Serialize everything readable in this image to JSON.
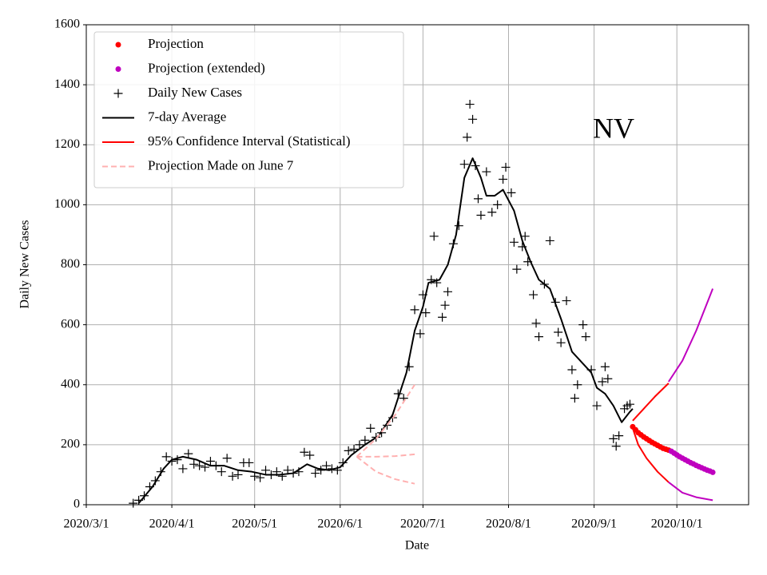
{
  "chart_data": {
    "type": "line",
    "xlabel": "Date",
    "ylabel": "Daily New Cases",
    "annotation": "NV",
    "xlim": [
      "2020-03-01",
      "2020-10-27"
    ],
    "ylim": [
      0,
      1600
    ],
    "xticks": [
      {
        "value": "2020-03-01",
        "label": "2020/3/1"
      },
      {
        "value": "2020-04-01",
        "label": "2020/4/1"
      },
      {
        "value": "2020-05-01",
        "label": "2020/5/1"
      },
      {
        "value": "2020-06-01",
        "label": "2020/6/1"
      },
      {
        "value": "2020-07-01",
        "label": "2020/7/1"
      },
      {
        "value": "2020-08-01",
        "label": "2020/8/1"
      },
      {
        "value": "2020-09-01",
        "label": "2020/9/1"
      },
      {
        "value": "2020-10-01",
        "label": "2020/10/1"
      }
    ],
    "yticks": [
      0,
      200,
      400,
      600,
      800,
      1000,
      1200,
      1400,
      1600
    ],
    "grid": true,
    "legend": "upper left",
    "series": [
      {
        "name": "Projection",
        "color": "#ff0000",
        "style": "dot",
        "x": [
          "2020-09-15",
          "2020-09-16",
          "2020-09-17",
          "2020-09-18",
          "2020-09-19",
          "2020-09-20",
          "2020-09-21",
          "2020-09-22",
          "2020-09-23",
          "2020-09-24",
          "2020-09-25",
          "2020-09-26",
          "2020-09-27",
          "2020-09-28"
        ],
        "values": [
          260,
          250,
          240,
          233,
          226,
          220,
          214,
          208,
          203,
          198,
          193,
          188,
          185,
          182
        ]
      },
      {
        "name": "Projection (extended)",
        "color": "#bf00bf",
        "style": "dot",
        "x": [
          "2020-09-29",
          "2020-09-30",
          "2020-10-01",
          "2020-10-02",
          "2020-10-03",
          "2020-10-04",
          "2020-10-05",
          "2020-10-06",
          "2020-10-07",
          "2020-10-08",
          "2020-10-09",
          "2020-10-10",
          "2020-10-11",
          "2020-10-12",
          "2020-10-13",
          "2020-10-14"
        ],
        "values": [
          178,
          172,
          166,
          160,
          155,
          150,
          145,
          140,
          136,
          131,
          127,
          123,
          119,
          115,
          112,
          108
        ]
      },
      {
        "name": "Daily New Cases",
        "color": "#000000",
        "style": "plus",
        "x": [
          "2020-03-18",
          "2020-03-20",
          "2020-03-22",
          "2020-03-24",
          "2020-03-26",
          "2020-03-28",
          "2020-03-30",
          "2020-04-01",
          "2020-04-03",
          "2020-04-05",
          "2020-04-07",
          "2020-04-09",
          "2020-04-11",
          "2020-04-13",
          "2020-04-15",
          "2020-04-17",
          "2020-04-19",
          "2020-04-21",
          "2020-04-23",
          "2020-04-25",
          "2020-04-27",
          "2020-04-29",
          "2020-05-01",
          "2020-05-03",
          "2020-05-05",
          "2020-05-07",
          "2020-05-09",
          "2020-05-11",
          "2020-05-13",
          "2020-05-15",
          "2020-05-17",
          "2020-05-19",
          "2020-05-21",
          "2020-05-23",
          "2020-05-25",
          "2020-05-27",
          "2020-05-29",
          "2020-05-31",
          "2020-06-02",
          "2020-06-04",
          "2020-06-06",
          "2020-06-08",
          "2020-06-10",
          "2020-06-12",
          "2020-06-14",
          "2020-06-16",
          "2020-06-18",
          "2020-06-20",
          "2020-06-22",
          "2020-06-24",
          "2020-06-26",
          "2020-06-28",
          "2020-06-30",
          "2020-07-01",
          "2020-07-02",
          "2020-07-04",
          "2020-07-05",
          "2020-07-06",
          "2020-07-08",
          "2020-07-09",
          "2020-07-10",
          "2020-07-12",
          "2020-07-14",
          "2020-07-16",
          "2020-07-17",
          "2020-07-18",
          "2020-07-19",
          "2020-07-20",
          "2020-07-21",
          "2020-07-22",
          "2020-07-24",
          "2020-07-26",
          "2020-07-28",
          "2020-07-30",
          "2020-07-31",
          "2020-08-02",
          "2020-08-03",
          "2020-08-04",
          "2020-08-06",
          "2020-08-07",
          "2020-08-08",
          "2020-08-10",
          "2020-08-11",
          "2020-08-12",
          "2020-08-14",
          "2020-08-16",
          "2020-08-18",
          "2020-08-19",
          "2020-08-20",
          "2020-08-22",
          "2020-08-24",
          "2020-08-25",
          "2020-08-26",
          "2020-08-28",
          "2020-08-29",
          "2020-08-31",
          "2020-09-02",
          "2020-09-04",
          "2020-09-05",
          "2020-09-06",
          "2020-09-08",
          "2020-09-09",
          "2020-09-10",
          "2020-09-12",
          "2020-09-13",
          "2020-09-14"
        ],
        "values": [
          5,
          15,
          30,
          60,
          80,
          110,
          160,
          145,
          150,
          120,
          170,
          135,
          130,
          125,
          145,
          130,
          110,
          155,
          95,
          100,
          140,
          140,
          95,
          90,
          115,
          100,
          110,
          95,
          115,
          105,
          110,
          175,
          165,
          105,
          115,
          130,
          120,
          115,
          140,
          180,
          185,
          200,
          215,
          255,
          225,
          240,
          265,
          290,
          370,
          355,
          460,
          650,
          570,
          700,
          640,
          750,
          895,
          740,
          625,
          665,
          710,
          870,
          930,
          1135,
          1225,
          1335,
          1285,
          1130,
          1020,
          965,
          1110,
          975,
          1000,
          1085,
          1125,
          1040,
          875,
          785,
          860,
          895,
          810,
          700,
          605,
          560,
          735,
          880,
          675,
          575,
          540,
          680,
          450,
          355,
          400,
          600,
          560,
          450,
          330,
          410,
          460,
          420,
          220,
          195,
          230,
          320,
          330,
          335
        ]
      },
      {
        "name": "7-day Average",
        "color": "#000000",
        "style": "line",
        "x": [
          "2020-03-20",
          "2020-03-25",
          "2020-03-29",
          "2020-04-01",
          "2020-04-05",
          "2020-04-10",
          "2020-04-15",
          "2020-04-20",
          "2020-04-25",
          "2020-04-30",
          "2020-05-05",
          "2020-05-10",
          "2020-05-15",
          "2020-05-20",
          "2020-05-24",
          "2020-05-28",
          "2020-06-01",
          "2020-06-05",
          "2020-06-10",
          "2020-06-15",
          "2020-06-20",
          "2020-06-25",
          "2020-06-28",
          "2020-07-01",
          "2020-07-03",
          "2020-07-07",
          "2020-07-10",
          "2020-07-13",
          "2020-07-16",
          "2020-07-19",
          "2020-07-22",
          "2020-07-24",
          "2020-07-27",
          "2020-07-30",
          "2020-08-03",
          "2020-08-06",
          "2020-08-09",
          "2020-08-12",
          "2020-08-16",
          "2020-08-20",
          "2020-08-24",
          "2020-08-28",
          "2020-08-31",
          "2020-09-02",
          "2020-09-05",
          "2020-09-08",
          "2020-09-11",
          "2020-09-14",
          "2020-09-15"
        ],
        "values": [
          5,
          60,
          120,
          150,
          160,
          150,
          130,
          130,
          115,
          110,
          100,
          100,
          105,
          135,
          120,
          115,
          125,
          165,
          200,
          230,
          300,
          440,
          580,
          660,
          740,
          750,
          800,
          900,
          1090,
          1155,
          1090,
          1030,
          1030,
          1050,
          980,
          880,
          810,
          750,
          720,
          620,
          510,
          470,
          440,
          390,
          370,
          330,
          275,
          310,
          320
        ]
      },
      {
        "name": "95% Confidence Interval (Statistical)",
        "color": "#ff0000",
        "style": "line",
        "x": [
          "2020-09-15",
          "2020-09-19",
          "2020-09-23",
          "2020-09-28"
        ],
        "values": [
          280,
          320,
          360,
          405
        ]
      },
      {
        "color": "#ff0000",
        "style": "line",
        "x": [
          "2020-09-15",
          "2020-09-17",
          "2020-09-20",
          "2020-09-24",
          "2020-09-28"
        ],
        "values": [
          255,
          200,
          155,
          110,
          75
        ]
      },
      {
        "color": "#bf00bf",
        "style": "line",
        "x": [
          "2020-09-28",
          "2020-10-03",
          "2020-10-08",
          "2020-10-14"
        ],
        "values": [
          410,
          480,
          580,
          720
        ]
      },
      {
        "color": "#bf00bf",
        "style": "line",
        "x": [
          "2020-09-28",
          "2020-10-03",
          "2020-10-08",
          "2020-10-14"
        ],
        "values": [
          75,
          40,
          25,
          15
        ]
      },
      {
        "name": "Projection Made on June 7",
        "color": "#ffb0b0",
        "style": "dashed",
        "x": [
          "2020-06-07",
          "2020-06-14",
          "2020-06-21",
          "2020-06-28"
        ],
        "values": [
          160,
          220,
          300,
          400
        ]
      },
      {
        "color": "#ffb0b0",
        "style": "dashed",
        "x": [
          "2020-06-07",
          "2020-06-14",
          "2020-06-21",
          "2020-06-28"
        ],
        "values": [
          160,
          160,
          162,
          168
        ]
      },
      {
        "color": "#ffb0b0",
        "style": "dashed",
        "x": [
          "2020-06-07",
          "2020-06-14",
          "2020-06-21",
          "2020-06-28"
        ],
        "values": [
          160,
          110,
          85,
          70
        ]
      }
    ]
  }
}
